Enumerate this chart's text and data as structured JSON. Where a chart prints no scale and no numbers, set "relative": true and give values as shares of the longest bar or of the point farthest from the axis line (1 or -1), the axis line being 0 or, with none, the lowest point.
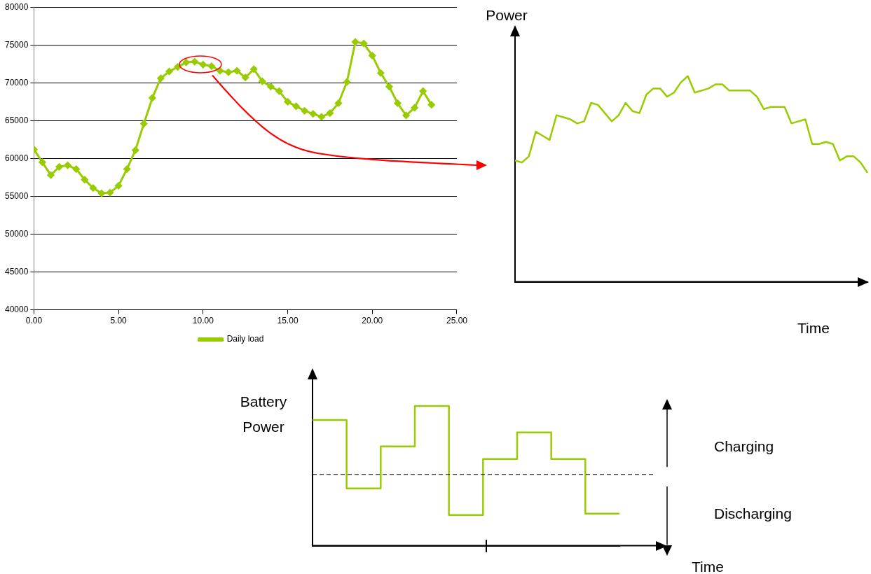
{
  "chart_data": [
    {
      "type": "line",
      "x": [
        0,
        0.5,
        1,
        1.5,
        2,
        2.5,
        3,
        3.5,
        4,
        4.5,
        5,
        5.5,
        6,
        6.5,
        7,
        7.5,
        8,
        8.5,
        9,
        9.5,
        10,
        10.5,
        11,
        11.5,
        12,
        12.5,
        13,
        13.5,
        14,
        14.5,
        15,
        15.5,
        16,
        16.5,
        17,
        17.5,
        18,
        18.5,
        19,
        19.5,
        20,
        20.5,
        21,
        21.5,
        22,
        22.5,
        23,
        23.5
      ],
      "series": [
        {
          "name": "Daily load",
          "color": "#99cc00",
          "values": [
            61200,
            59500,
            57800,
            58900,
            59100,
            58600,
            57200,
            56100,
            55400,
            55500,
            56400,
            58600,
            61100,
            64600,
            68000,
            70600,
            71500,
            72100,
            72700,
            72800,
            72400,
            72200,
            71600,
            71400,
            71600,
            70700,
            71800,
            70200,
            69500,
            68900,
            67500,
            66900,
            66300,
            65900,
            65500,
            66000,
            67300,
            70100,
            75400,
            75200,
            73600,
            71300,
            69500,
            67300,
            65700,
            66700,
            68900,
            67100
          ]
        }
      ],
      "xlim": [
        0,
        25
      ],
      "xticks": [
        {
          "value": 0,
          "label": "0.00"
        },
        {
          "value": 5,
          "label": "5.00"
        },
        {
          "value": 10,
          "label": "10.00"
        },
        {
          "value": 15,
          "label": "15.00"
        },
        {
          "value": 20,
          "label": "20.00"
        },
        {
          "value": 25,
          "label": "25.00"
        }
      ],
      "ylim": [
        40000,
        80000
      ],
      "yticks": [
        40000,
        45000,
        50000,
        55000,
        60000,
        65000,
        70000,
        75000,
        80000
      ],
      "grid": "y",
      "legend": "bottom",
      "marker": "diamond"
    },
    {
      "type": "line",
      "relative": true,
      "xlabel": "Time",
      "ylabel": "Power",
      "color": "#99cc00",
      "categories": [
        null,
        null,
        null,
        null,
        null,
        null,
        null,
        null,
        null,
        null,
        null,
        null,
        null,
        null,
        null,
        null,
        null,
        null,
        null,
        null,
        null,
        null,
        null,
        null,
        null,
        null,
        null,
        null,
        null,
        null,
        null,
        null,
        null,
        null,
        null,
        null,
        null,
        null,
        null,
        null,
        null,
        null,
        null,
        null,
        null,
        null,
        null,
        null,
        null,
        null,
        null,
        null
      ],
      "values": [
        0.59,
        0.58,
        0.61,
        0.73,
        0.71,
        0.69,
        0.81,
        0.8,
        0.79,
        0.77,
        0.78,
        0.87,
        0.86,
        0.82,
        0.78,
        0.81,
        0.87,
        0.83,
        0.82,
        0.91,
        0.94,
        0.94,
        0.9,
        0.92,
        0.97,
        1.0,
        0.92,
        0.93,
        0.94,
        0.96,
        0.96,
        0.93,
        0.93,
        0.93,
        0.93,
        0.9,
        0.84,
        0.85,
        0.85,
        0.85,
        0.77,
        0.78,
        0.79,
        0.67,
        0.67,
        0.68,
        0.67,
        0.59,
        0.61,
        0.61,
        0.58,
        0.53
      ]
    },
    {
      "type": "step",
      "relative": true,
      "xlabel": "Time",
      "ylabel": "Battery Power",
      "color": "#99cc00",
      "categories": [
        null,
        null,
        null,
        null,
        null,
        null,
        null,
        null,
        null,
        null
      ],
      "values": [
        0.9,
        0.41,
        0.71,
        1.0,
        0.22,
        0.62,
        0.81,
        0.62,
        0.23,
        0.23
      ],
      "ref_lines": [
        {
          "axis": "y",
          "value": 0.51,
          "line_style": "dashed",
          "color": "#000000"
        }
      ],
      "annotations": [
        "Charging",
        "Discharging"
      ]
    }
  ]
}
